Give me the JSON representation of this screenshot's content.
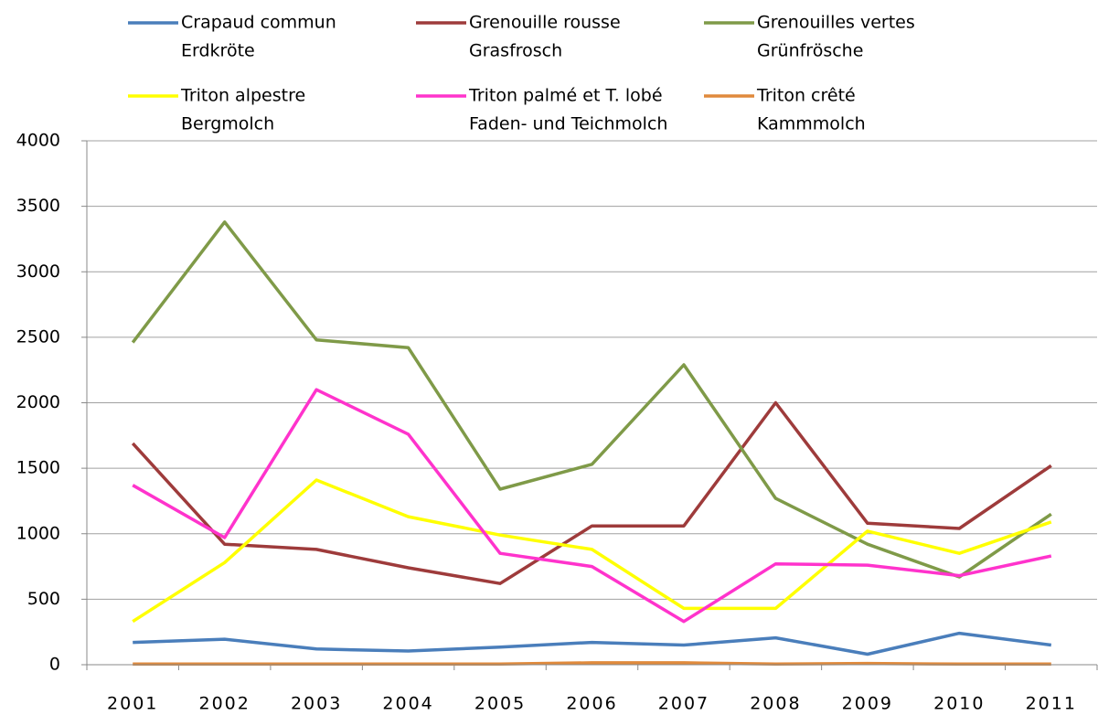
{
  "chart_data": {
    "type": "line",
    "categories": [
      "2001",
      "2002",
      "2003",
      "2004",
      "2005",
      "2006",
      "2007",
      "2008",
      "2009",
      "2010",
      "2011"
    ],
    "series": [
      {
        "name": [
          "Crapaud commun",
          "Erdkröte"
        ],
        "color": "#4a7ebb",
        "values": [
          170,
          195,
          120,
          105,
          135,
          170,
          150,
          205,
          80,
          240,
          150
        ]
      },
      {
        "name": [
          "Grenouille rousse",
          "Grasfrosch"
        ],
        "color": "#9e3b3b",
        "values": [
          1690,
          920,
          880,
          740,
          620,
          1060,
          1060,
          2000,
          1080,
          1040,
          1520
        ]
      },
      {
        "name": [
          "Grenouilles vertes",
          "Grünfrösche"
        ],
        "color": "#7f9a48",
        "values": [
          2460,
          3380,
          2480,
          2420,
          1340,
          1530,
          2290,
          1270,
          920,
          670,
          1150
        ]
      },
      {
        "name": [
          "Triton alpestre",
          "Bergmolch"
        ],
        "color": "#ffff00",
        "values": [
          330,
          780,
          1410,
          1130,
          990,
          880,
          430,
          430,
          1020,
          850,
          1090
        ]
      },
      {
        "name": [
          "Triton palmé et T. lobé",
          "Faden- und Teichmolch"
        ],
        "color": "#ff33cc",
        "values": [
          1370,
          970,
          2100,
          1760,
          850,
          750,
          330,
          770,
          760,
          680,
          830
        ]
      },
      {
        "name": [
          "Triton crêté",
          "Kammmolch"
        ],
        "color": "#e08a3c",
        "values": [
          5,
          5,
          5,
          5,
          5,
          15,
          15,
          5,
          10,
          5,
          5
        ]
      }
    ],
    "ylim": [
      0,
      4000
    ],
    "yticks": [
      0,
      500,
      1000,
      1500,
      2000,
      2500,
      3000,
      3500,
      4000
    ],
    "grid": true,
    "legend": "top"
  }
}
